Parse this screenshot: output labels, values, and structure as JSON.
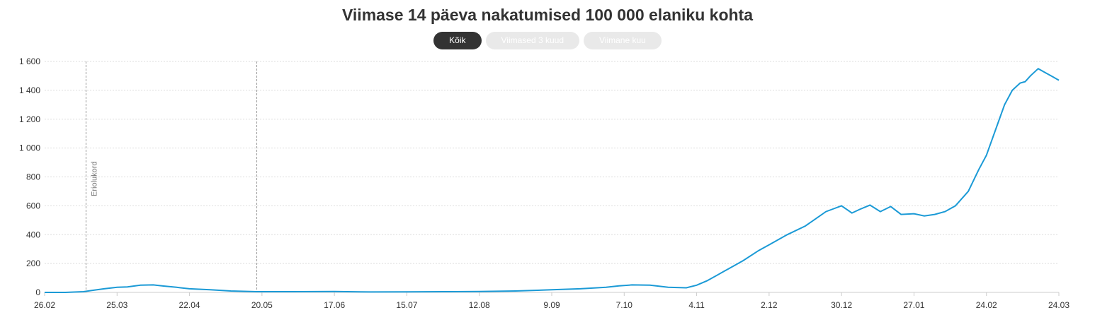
{
  "title": "Viimase 14 päeva nakatumised 100 000 elaniku kohta",
  "filters": [
    {
      "label": "Kõik",
      "active": true
    },
    {
      "label": "Viimased 3 kuud",
      "active": false
    },
    {
      "label": "Viimane kuu",
      "active": false
    }
  ],
  "colors": {
    "line": "#1b9ad6",
    "grid": "#dddddd",
    "marker": "#999999"
  },
  "chart_data": {
    "type": "line",
    "title": "Viimase 14 päeva nakatumised 100 000 elaniku kohta",
    "xlabel": "",
    "ylabel": "",
    "ylim": [
      0,
      1600
    ],
    "yticks": [
      0,
      200,
      400,
      600,
      800,
      1000,
      1200,
      1400,
      1600
    ],
    "ytick_labels": [
      "0",
      "200",
      "400",
      "600",
      "800",
      "1 000",
      "1 200",
      "1 400",
      "1 600"
    ],
    "xticks": [
      "2020-02-26",
      "2020-03-25",
      "2020-04-22",
      "2020-05-20",
      "2020-06-17",
      "2020-07-15",
      "2020-08-12",
      "2020-09-09",
      "2020-10-07",
      "2020-11-04",
      "2020-12-02",
      "2020-12-30",
      "2021-01-27",
      "2021-02-24",
      "2021-03-24"
    ],
    "xtick_labels": [
      "26.02",
      "25.03",
      "22.04",
      "20.05",
      "17.06",
      "15.07",
      "12.08",
      "9.09",
      "7.10",
      "4.11",
      "2.12",
      "30.12",
      "27.01",
      "24.02",
      "24.03"
    ],
    "xlim": [
      "2020-02-26",
      "2021-03-24"
    ],
    "grid": true,
    "annotations": [
      {
        "type": "vline",
        "x": "2020-03-13",
        "label": "Eriolukord"
      },
      {
        "type": "vline",
        "x": "2020-05-18",
        "label": ""
      }
    ],
    "series": [
      {
        "x": [
          "2020-02-26",
          "2020-03-05",
          "2020-03-12",
          "2020-03-16",
          "2020-03-20",
          "2020-03-25",
          "2020-03-29",
          "2020-04-03",
          "2020-04-08",
          "2020-04-12",
          "2020-04-17",
          "2020-04-22",
          "2020-04-30",
          "2020-05-08",
          "2020-05-18",
          "2020-06-01",
          "2020-06-17",
          "2020-07-01",
          "2020-07-15",
          "2020-07-29",
          "2020-08-12",
          "2020-08-26",
          "2020-09-09",
          "2020-09-20",
          "2020-09-30",
          "2020-10-05",
          "2020-10-10",
          "2020-10-17",
          "2020-10-24",
          "2020-10-31",
          "2020-11-04",
          "2020-11-08",
          "2020-11-15",
          "2020-11-22",
          "2020-11-28",
          "2020-12-02",
          "2020-12-09",
          "2020-12-16",
          "2020-12-20",
          "2020-12-24",
          "2020-12-27",
          "2020-12-30",
          "2021-01-03",
          "2021-01-06",
          "2021-01-10",
          "2021-01-14",
          "2021-01-18",
          "2021-01-22",
          "2021-01-27",
          "2021-01-31",
          "2021-02-04",
          "2021-02-08",
          "2021-02-12",
          "2021-02-17",
          "2021-02-21",
          "2021-02-24",
          "2021-02-28",
          "2021-03-03",
          "2021-03-06",
          "2021-03-09",
          "2021-03-11",
          "2021-03-13",
          "2021-03-16",
          "2021-03-19",
          "2021-03-21",
          "2021-03-24"
        ],
        "y": [
          0,
          0,
          5,
          15,
          25,
          35,
          38,
          50,
          52,
          44,
          35,
          25,
          18,
          10,
          5,
          5,
          6,
          3,
          4,
          5,
          6,
          10,
          18,
          25,
          35,
          45,
          52,
          50,
          35,
          32,
          50,
          80,
          150,
          220,
          290,
          330,
          400,
          460,
          510,
          560,
          580,
          600,
          550,
          575,
          605,
          560,
          595,
          540,
          545,
          530,
          540,
          560,
          600,
          700,
          850,
          950,
          1150,
          1300,
          1400,
          1450,
          1460,
          1500,
          1550,
          1520,
          1500,
          1470
        ]
      }
    ]
  }
}
